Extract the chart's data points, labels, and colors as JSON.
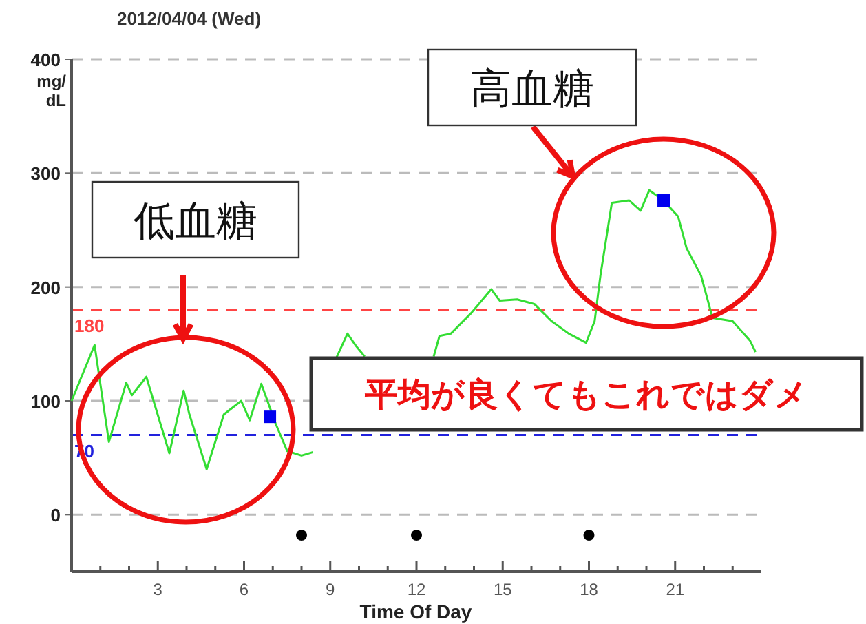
{
  "chart_data": {
    "type": "line",
    "title": "2012/04/04 (Wed)",
    "xlabel": "Time Of Day",
    "ylabel": "mg/dL",
    "xlim": [
      0,
      24
    ],
    "ylim": [
      -50,
      400
    ],
    "xticks": [
      {
        "value": 1,
        "label": null
      },
      {
        "value": 2,
        "label": null
      },
      3,
      {
        "value": 4,
        "label": null
      },
      {
        "value": 5,
        "label": null
      },
      6,
      {
        "value": 7,
        "label": null
      },
      {
        "value": 8,
        "label": null
      },
      9,
      {
        "value": 10,
        "label": null
      },
      {
        "value": 11,
        "label": null
      },
      12,
      {
        "value": 13,
        "label": null
      },
      {
        "value": 14,
        "label": null
      },
      15,
      {
        "value": 16,
        "label": null
      },
      {
        "value": 17,
        "label": null
      },
      18,
      {
        "value": 19,
        "label": null
      },
      {
        "value": 20,
        "label": null
      },
      21,
      {
        "value": 22,
        "label": null
      },
      {
        "value": 23,
        "label": null
      }
    ],
    "yticks": [
      0,
      100,
      200,
      300,
      400
    ],
    "grid": "y",
    "series": [
      {
        "color": "#33dd33",
        "marker": "none",
        "x": [
          0,
          0.8,
          1.3,
          1.9,
          2.1,
          2.6,
          3.4,
          3.9,
          4.1,
          4.7,
          5.3,
          5.9,
          6.2,
          6.6,
          7.1,
          7.5,
          8.0,
          8.4,
          8.7,
          9.2,
          9.6,
          9.9,
          10.2,
          11.4,
          12.6,
          12.8,
          13.2,
          13.9,
          14.6,
          14.9,
          15.5,
          16.1,
          16.7,
          17.3,
          17.9,
          18.2,
          18.4,
          18.8,
          19.4,
          19.8,
          20.1,
          20.6,
          21.1,
          21.4,
          21.9,
          22.3,
          23.0,
          23.6,
          23.8
        ],
        "values": [
          100,
          149,
          64,
          116,
          105,
          121,
          54,
          109,
          88,
          40,
          88,
          100,
          83,
          115,
          80,
          56,
          52,
          55,
          null,
          137,
          159,
          148,
          139,
          null,
          139,
          157,
          159,
          177,
          198,
          188,
          189,
          185,
          170,
          159,
          151,
          170,
          210,
          274,
          276,
          267,
          285,
          276,
          262,
          234,
          210,
          173,
          170,
          153,
          143
        ]
      },
      {
        "type": "scatter",
        "color": "#0000ee",
        "marker": "square",
        "x": [
          6.9,
          20.6
        ],
        "values": [
          86,
          276
        ]
      },
      {
        "type": "scatter",
        "color": "#000000",
        "marker": "circle",
        "x": [
          8,
          12,
          18
        ],
        "values": [
          -18,
          -18,
          -18
        ]
      }
    ],
    "ref_lines": [
      {
        "axis": "y",
        "value": 180,
        "label": "180",
        "color": "#ff4444",
        "line_style": "dashed"
      },
      {
        "axis": "y",
        "value": 70,
        "label": "70",
        "color": "#2222dd",
        "line_style": "dashed"
      }
    ],
    "annotations": [
      "低血糖",
      "高血糖",
      "平均が良くてもこれではダメ"
    ]
  }
}
